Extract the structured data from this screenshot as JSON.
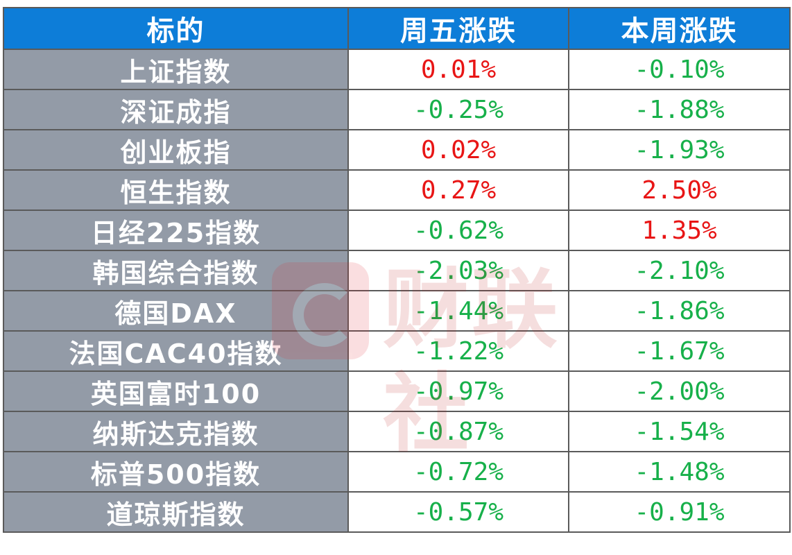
{
  "table": {
    "headers": [
      "标的",
      "周五涨跌",
      "本周涨跌"
    ],
    "rows": [
      {
        "name": "上证指数",
        "friday": "0.01%",
        "week": "-0.10%"
      },
      {
        "name": "深证成指",
        "friday": "-0.25%",
        "week": "-1.88%"
      },
      {
        "name": "创业板指",
        "friday": "0.02%",
        "week": "-1.93%"
      },
      {
        "name": "恒生指数",
        "friday": "0.27%",
        "week": "2.50%"
      },
      {
        "name": "日经225指数",
        "friday": "-0.62%",
        "week": "1.35%"
      },
      {
        "name": "韩国综合指数",
        "friday": "-2.03%",
        "week": "-2.10%"
      },
      {
        "name": "德国DAX",
        "friday": "-1.44%",
        "week": "-1.86%"
      },
      {
        "name": "法国CAC40指数",
        "friday": "-1.22%",
        "week": "-1.67%"
      },
      {
        "name": "英国富时100",
        "friday": "-0.97%",
        "week": "-2.00%"
      },
      {
        "name": "纳斯达克指数",
        "friday": "-0.87%",
        "week": "-1.54%"
      },
      {
        "name": "标普500指数",
        "friday": "-0.72%",
        "week": "-1.48%"
      },
      {
        "name": "道琼斯指数",
        "friday": "-0.57%",
        "week": "-0.91%"
      }
    ]
  },
  "watermark": {
    "text": "财联社"
  },
  "colors": {
    "header_bg": "#0d7dd8",
    "name_bg": "#939ba7",
    "positive": "#e81515",
    "negative": "#17b04a"
  }
}
